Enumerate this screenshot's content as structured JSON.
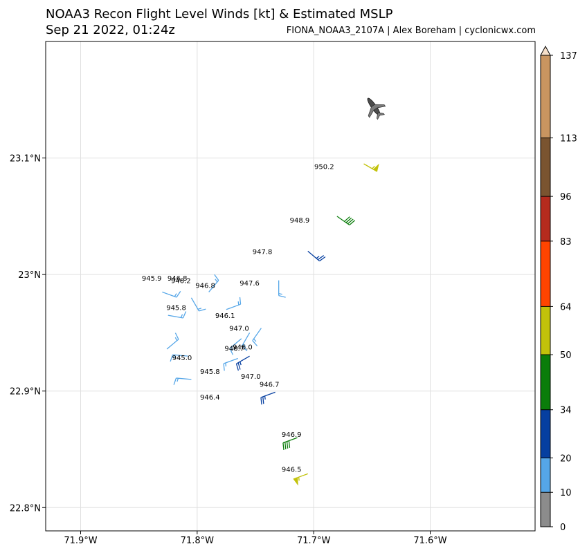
{
  "header": {
    "title": "NOAA3 Recon Flight Level Winds [kt] & Estimated MSLP",
    "subtitle": "Sep 21 2022, 01:24z",
    "credit": "FIONA_NOAA3_2107A | Alex Boreham | cyclonicwx.com"
  },
  "chart_data": {
    "type": "scatter",
    "title": "NOAA3 Recon Flight Level Winds [kt] & Estimated MSLP",
    "subtitle": "Sep 21 2022, 01:24z",
    "xlim": [
      -71.93,
      -71.51
    ],
    "ylim": [
      22.78,
      23.2
    ],
    "x_ticks": [
      -71.9,
      -71.8,
      -71.7,
      -71.6
    ],
    "x_tick_labels": [
      "71.9°W",
      "71.8°W",
      "71.7°W",
      "71.6°W"
    ],
    "y_ticks": [
      23.1,
      23.0,
      22.9,
      22.8
    ],
    "y_tick_labels": [
      "23.1°N",
      "23°N",
      "22.9°N",
      "22.8°N"
    ],
    "grid": true,
    "colorbar": {
      "bounds": [
        0,
        10,
        20,
        34,
        50,
        64,
        83,
        96,
        113,
        137
      ],
      "colors": [
        "#8c8c8c",
        "#55a6e8",
        "#063fa0",
        "#0a7d0a",
        "#c2c20a",
        "#ff4400",
        "#b52b1e",
        "#7a5430",
        "#c99560"
      ]
    },
    "aircraft": {
      "lon": -71.647,
      "lat": 23.142
    },
    "observations": [
      {
        "lon": -71.657,
        "lat": 23.095,
        "dir": 120,
        "kt": 55
      },
      {
        "lon": -71.68,
        "lat": 23.05,
        "dir": 125,
        "kt": 40
      },
      {
        "lon": -71.705,
        "lat": 23.02,
        "dir": 130,
        "kt": 25
      },
      {
        "lon": -71.73,
        "lat": 22.995,
        "dir": 180,
        "kt": 15
      },
      {
        "lon": -71.83,
        "lat": 22.985,
        "dir": 110,
        "kt": 15
      },
      {
        "lon": -71.805,
        "lat": 22.98,
        "dir": 150,
        "kt": 15
      },
      {
        "lon": -71.79,
        "lat": 22.985,
        "dir": 40,
        "kt": 15
      },
      {
        "lon": -71.775,
        "lat": 22.97,
        "dir": 70,
        "kt": 15
      },
      {
        "lon": -71.825,
        "lat": 22.965,
        "dir": 100,
        "kt": 15
      },
      {
        "lon": -71.755,
        "lat": 22.95,
        "dir": 210,
        "kt": 15
      },
      {
        "lon": -71.745,
        "lat": 22.954,
        "dir": 215,
        "kt": 15
      },
      {
        "lon": -71.762,
        "lat": 22.945,
        "dir": 230,
        "kt": 15
      },
      {
        "lon": -71.826,
        "lat": 22.936,
        "dir": 50,
        "kt": 15
      },
      {
        "lon": -71.808,
        "lat": 22.93,
        "dir": 275,
        "kt": 15
      },
      {
        "lon": -71.755,
        "lat": 22.93,
        "dir": 240,
        "kt": 25
      },
      {
        "lon": -71.765,
        "lat": 22.928,
        "dir": 250,
        "kt": 15
      },
      {
        "lon": -71.805,
        "lat": 22.91,
        "dir": 275,
        "kt": 15
      },
      {
        "lon": -71.733,
        "lat": 22.899,
        "dir": 250,
        "kt": 25
      },
      {
        "lon": -71.714,
        "lat": 22.86,
        "dir": 250,
        "kt": 40
      },
      {
        "lon": -71.705,
        "lat": 22.829,
        "dir": 250,
        "kt": 55
      }
    ],
    "mslp_labels": [
      {
        "lon": -71.691,
        "lat": 23.093,
        "text": "950.2"
      },
      {
        "lon": -71.712,
        "lat": 23.047,
        "text": "948.9"
      },
      {
        "lon": -71.744,
        "lat": 23.02,
        "text": "947.8"
      },
      {
        "lon": -71.755,
        "lat": 22.993,
        "text": "947.6"
      },
      {
        "lon": -71.839,
        "lat": 22.997,
        "text": "945.9"
      },
      {
        "lon": -71.817,
        "lat": 22.997,
        "text": "946.8"
      },
      {
        "lon": -71.814,
        "lat": 22.995,
        "text": "946.2"
      },
      {
        "lon": -71.793,
        "lat": 22.991,
        "text": "946.8"
      },
      {
        "lon": -71.818,
        "lat": 22.972,
        "text": "945.8"
      },
      {
        "lon": -71.776,
        "lat": 22.965,
        "text": "946.1"
      },
      {
        "lon": -71.764,
        "lat": 22.954,
        "text": "947.0"
      },
      {
        "lon": -71.768,
        "lat": 22.937,
        "text": "946.7"
      },
      {
        "lon": -71.761,
        "lat": 22.938,
        "text": "946.0"
      },
      {
        "lon": -71.813,
        "lat": 22.929,
        "text": "945.0"
      },
      {
        "lon": -71.789,
        "lat": 22.917,
        "text": "945.8"
      },
      {
        "lon": -71.754,
        "lat": 22.913,
        "text": "947.0"
      },
      {
        "lon": -71.738,
        "lat": 22.906,
        "text": "946.7"
      },
      {
        "lon": -71.789,
        "lat": 22.895,
        "text": "946.4"
      },
      {
        "lon": -71.719,
        "lat": 22.863,
        "text": "946.9"
      },
      {
        "lon": -71.719,
        "lat": 22.833,
        "text": "946.5"
      }
    ]
  }
}
